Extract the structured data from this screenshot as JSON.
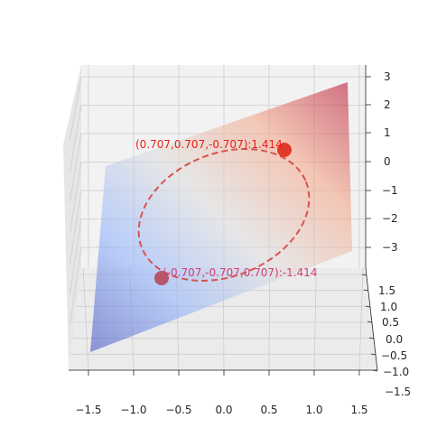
{
  "chart_data": {
    "type": "surface3d",
    "title": "",
    "xlabel": "",
    "ylabel": "",
    "zlabel": "",
    "surface": {
      "equation": "z = x + y",
      "x_range": [
        -1.5,
        1.5
      ],
      "y_range": [
        -1.5,
        1.5
      ],
      "colormap": "coolwarm"
    },
    "x_ticks": [
      -1.5,
      -1.0,
      -0.5,
      0.0,
      0.5,
      1.0,
      1.5
    ],
    "y_ticks": [
      -1.5,
      -1.0,
      -0.5,
      0.0,
      0.5,
      1.0,
      1.5
    ],
    "z_ticks": [
      -3,
      -2,
      -1,
      0,
      1,
      2,
      3
    ],
    "x_tick_labels": [
      "−1.5",
      "−1.0",
      "−0.5",
      "0.0",
      "0.5",
      "1.0",
      "1.5"
    ],
    "y_tick_labels": [
      "−1.5",
      "−1.0",
      "−0.5",
      "0.0",
      "0.5",
      "1.0",
      "1.5"
    ],
    "z_tick_labels": [
      "−3",
      "−2",
      "−1",
      "0",
      "1",
      "2",
      "3"
    ],
    "constraint_curve": {
      "description": "x² + y² = 1 on the surface",
      "color": "#d9534f",
      "style": "dashed"
    },
    "points": [
      {
        "x": 0.707,
        "y": 0.707,
        "z": 1.414,
        "label": "(0.707,0.707,-0.707):1.414",
        "color": "#e03a2a"
      },
      {
        "x": -0.707,
        "y": -0.707,
        "z": -1.414,
        "label": "(-0.707,-0.707,0.707):-1.414",
        "color": "#b5566a"
      }
    ],
    "grid": true
  }
}
